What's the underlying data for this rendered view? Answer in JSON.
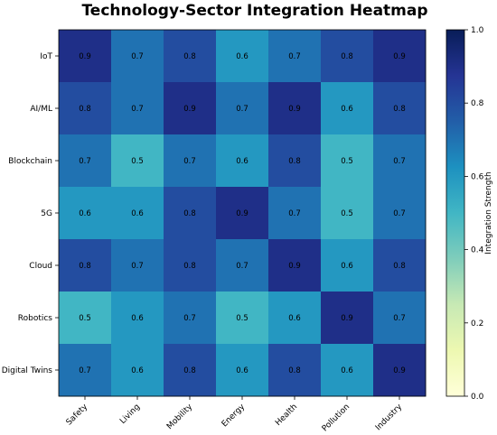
{
  "chart_data": {
    "type": "heatmap",
    "title": "Technology-Sector Integration Heatmap",
    "rows": [
      "IoT",
      "AI/ML",
      "Blockchain",
      "5G",
      "Cloud",
      "Robotics",
      "Digital Twins"
    ],
    "columns": [
      "Safety",
      "Living",
      "Mobility",
      "Energy",
      "Health",
      "Pollution",
      "Industry"
    ],
    "values": [
      [
        0.9,
        0.7,
        0.8,
        0.6,
        0.7,
        0.8,
        0.9
      ],
      [
        0.8,
        0.7,
        0.9,
        0.7,
        0.9,
        0.6,
        0.8
      ],
      [
        0.7,
        0.5,
        0.7,
        0.6,
        0.8,
        0.5,
        0.7
      ],
      [
        0.6,
        0.6,
        0.8,
        0.9,
        0.7,
        0.5,
        0.7
      ],
      [
        0.8,
        0.7,
        0.8,
        0.7,
        0.9,
        0.6,
        0.8
      ],
      [
        0.5,
        0.6,
        0.7,
        0.5,
        0.6,
        0.9,
        0.7
      ],
      [
        0.7,
        0.6,
        0.8,
        0.6,
        0.8,
        0.6,
        0.9
      ]
    ],
    "colorbar": {
      "label": "Integration Strength",
      "range": [
        0.0,
        1.0
      ],
      "ticks": [
        "0.0",
        "0.2",
        "0.4",
        "0.6",
        "0.8",
        "1.0"
      ],
      "colormap": "YlGnBu"
    },
    "annotations": "cell values shown"
  }
}
